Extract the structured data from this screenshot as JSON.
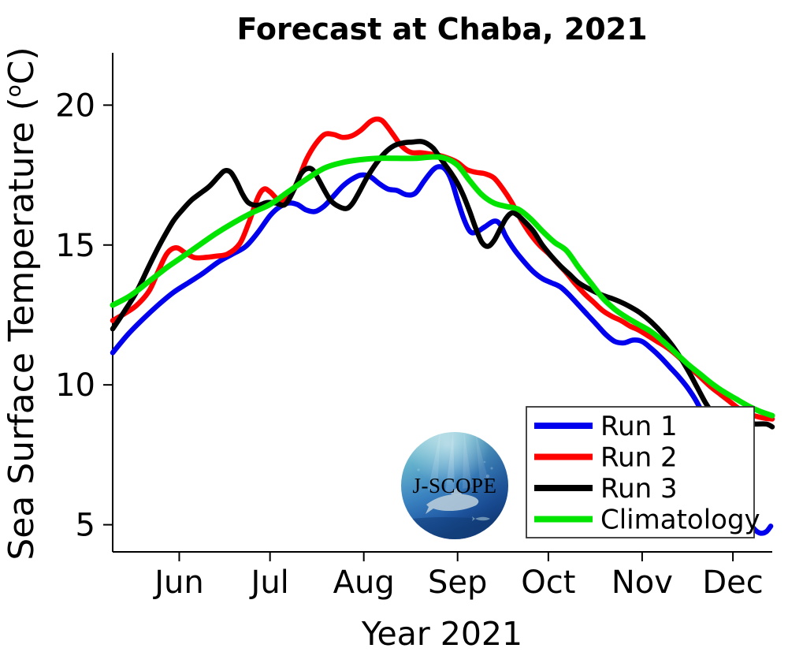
{
  "chart_data": {
    "type": "line",
    "title": "Forecast at Chaba, 2021",
    "xlabel": "Year 2021",
    "ylabel": "Sea Surface Temperature (°C)",
    "grid": false,
    "legend_position": "lower-right-inside",
    "x_domain_days": [
      0,
      218
    ],
    "x_ticks": [
      {
        "day": 22,
        "label": "Jun"
      },
      {
        "day": 52,
        "label": "Jul"
      },
      {
        "day": 83,
        "label": "Aug"
      },
      {
        "day": 114,
        "label": "Sep"
      },
      {
        "day": 144,
        "label": "Oct"
      },
      {
        "day": 175,
        "label": "Nov"
      },
      {
        "day": 205,
        "label": "Dec"
      }
    ],
    "ylim": [
      4.03,
      21.87
    ],
    "y_ticks": [
      5,
      10,
      15,
      20
    ],
    "series": [
      {
        "name": "Run 1",
        "color": "#0000ee",
        "width": 6.5,
        "points": [
          [
            0,
            11.15
          ],
          [
            5,
            11.8
          ],
          [
            10,
            12.35
          ],
          [
            15,
            12.85
          ],
          [
            20,
            13.3
          ],
          [
            25,
            13.65
          ],
          [
            30,
            14.0
          ],
          [
            35,
            14.4
          ],
          [
            40,
            14.7
          ],
          [
            44,
            14.95
          ],
          [
            48,
            15.45
          ],
          [
            52,
            16.05
          ],
          [
            55,
            16.35
          ],
          [
            58,
            16.5
          ],
          [
            61,
            16.45
          ],
          [
            64,
            16.25
          ],
          [
            67,
            16.2
          ],
          [
            70,
            16.4
          ],
          [
            73,
            16.75
          ],
          [
            76,
            17.1
          ],
          [
            79,
            17.35
          ],
          [
            82,
            17.5
          ],
          [
            85,
            17.45
          ],
          [
            88,
            17.2
          ],
          [
            91,
            17.0
          ],
          [
            94,
            16.95
          ],
          [
            97,
            16.8
          ],
          [
            100,
            16.85
          ],
          [
            103,
            17.3
          ],
          [
            106,
            17.7
          ],
          [
            108,
            17.8
          ],
          [
            110,
            17.7
          ],
          [
            112,
            17.3
          ],
          [
            114,
            16.6
          ],
          [
            116,
            15.95
          ],
          [
            118,
            15.5
          ],
          [
            120,
            15.45
          ],
          [
            123,
            15.65
          ],
          [
            126,
            15.85
          ],
          [
            128,
            15.75
          ],
          [
            130,
            15.3
          ],
          [
            133,
            14.8
          ],
          [
            136,
            14.4
          ],
          [
            139,
            14.05
          ],
          [
            142,
            13.8
          ],
          [
            145,
            13.65
          ],
          [
            148,
            13.5
          ],
          [
            151,
            13.2
          ],
          [
            154,
            12.85
          ],
          [
            157,
            12.5
          ],
          [
            160,
            12.15
          ],
          [
            163,
            11.8
          ],
          [
            166,
            11.55
          ],
          [
            169,
            11.5
          ],
          [
            172,
            11.6
          ],
          [
            175,
            11.55
          ],
          [
            178,
            11.3
          ],
          [
            181,
            11.0
          ],
          [
            184,
            10.65
          ],
          [
            187,
            10.3
          ],
          [
            190,
            9.9
          ],
          [
            193,
            9.4
          ],
          [
            196,
            8.75
          ],
          [
            199,
            8.0
          ],
          [
            202,
            7.2
          ],
          [
            205,
            6.4
          ],
          [
            208,
            5.6
          ],
          [
            210,
            5.15
          ],
          [
            212,
            4.85
          ],
          [
            214,
            4.7
          ],
          [
            216,
            4.75
          ],
          [
            217.5,
            4.95
          ]
        ]
      },
      {
        "name": "Run 2",
        "color": "#ff0000",
        "width": 6.5,
        "points": [
          [
            0,
            12.3
          ],
          [
            4,
            12.55
          ],
          [
            8,
            12.85
          ],
          [
            12,
            13.35
          ],
          [
            15,
            14.05
          ],
          [
            18,
            14.7
          ],
          [
            21,
            14.9
          ],
          [
            24,
            14.72
          ],
          [
            27,
            14.55
          ],
          [
            30,
            14.55
          ],
          [
            34,
            14.6
          ],
          [
            38,
            14.68
          ],
          [
            42,
            15.05
          ],
          [
            45,
            15.8
          ],
          [
            48,
            16.7
          ],
          [
            50,
            17.0
          ],
          [
            52,
            16.9
          ],
          [
            55,
            16.6
          ],
          [
            58,
            16.7
          ],
          [
            61,
            17.25
          ],
          [
            64,
            18.05
          ],
          [
            67,
            18.6
          ],
          [
            70,
            18.95
          ],
          [
            73,
            18.95
          ],
          [
            76,
            18.85
          ],
          [
            79,
            18.9
          ],
          [
            82,
            19.1
          ],
          [
            85,
            19.4
          ],
          [
            87,
            19.5
          ],
          [
            89,
            19.45
          ],
          [
            91,
            19.2
          ],
          [
            93,
            18.9
          ],
          [
            95,
            18.6
          ],
          [
            97,
            18.4
          ],
          [
            99,
            18.3
          ],
          [
            102,
            18.3
          ],
          [
            105,
            18.25
          ],
          [
            108,
            18.2
          ],
          [
            111,
            18.1
          ],
          [
            114,
            17.95
          ],
          [
            117,
            17.7
          ],
          [
            120,
            17.6
          ],
          [
            123,
            17.55
          ],
          [
            126,
            17.4
          ],
          [
            129,
            17.0
          ],
          [
            132,
            16.5
          ],
          [
            135,
            15.9
          ],
          [
            138,
            15.4
          ],
          [
            141,
            15.0
          ],
          [
            144,
            14.7
          ],
          [
            147,
            14.35
          ],
          [
            150,
            14.0
          ],
          [
            153,
            13.6
          ],
          [
            156,
            13.25
          ],
          [
            159,
            12.95
          ],
          [
            162,
            12.65
          ],
          [
            165,
            12.45
          ],
          [
            168,
            12.3
          ],
          [
            171,
            12.1
          ],
          [
            174,
            11.95
          ],
          [
            177,
            11.75
          ],
          [
            180,
            11.55
          ],
          [
            183,
            11.35
          ],
          [
            186,
            11.1
          ],
          [
            189,
            10.8
          ],
          [
            192,
            10.5
          ],
          [
            195,
            10.2
          ],
          [
            198,
            9.9
          ],
          [
            201,
            9.65
          ],
          [
            204,
            9.4
          ],
          [
            207,
            9.15
          ],
          [
            210,
            8.97
          ],
          [
            213,
            8.87
          ],
          [
            216,
            8.8
          ],
          [
            218,
            8.78
          ]
        ]
      },
      {
        "name": "Run 3",
        "color": "#000000",
        "width": 6.5,
        "points": [
          [
            0,
            12.0
          ],
          [
            4,
            12.65
          ],
          [
            8,
            13.35
          ],
          [
            12,
            14.25
          ],
          [
            16,
            15.1
          ],
          [
            20,
            15.85
          ],
          [
            23,
            16.25
          ],
          [
            26,
            16.6
          ],
          [
            29,
            16.85
          ],
          [
            32,
            17.1
          ],
          [
            35,
            17.45
          ],
          [
            37,
            17.65
          ],
          [
            39,
            17.6
          ],
          [
            41,
            17.25
          ],
          [
            43,
            16.8
          ],
          [
            45,
            16.5
          ],
          [
            48,
            16.42
          ],
          [
            51,
            16.52
          ],
          [
            54,
            16.5
          ],
          [
            57,
            16.45
          ],
          [
            60,
            17.0
          ],
          [
            62,
            17.5
          ],
          [
            64,
            17.72
          ],
          [
            66,
            17.7
          ],
          [
            68,
            17.35
          ],
          [
            70,
            16.95
          ],
          [
            72,
            16.6
          ],
          [
            74,
            16.42
          ],
          [
            77,
            16.3
          ],
          [
            79,
            16.45
          ],
          [
            81,
            16.8
          ],
          [
            84,
            17.4
          ],
          [
            87,
            17.9
          ],
          [
            90,
            18.3
          ],
          [
            93,
            18.55
          ],
          [
            96,
            18.65
          ],
          [
            99,
            18.68
          ],
          [
            102,
            18.7
          ],
          [
            104,
            18.62
          ],
          [
            106,
            18.45
          ],
          [
            108,
            18.15
          ],
          [
            110,
            17.85
          ],
          [
            112,
            17.55
          ],
          [
            114,
            17.2
          ],
          [
            116,
            16.75
          ],
          [
            118,
            16.2
          ],
          [
            120,
            15.6
          ],
          [
            122,
            15.1
          ],
          [
            124,
            14.95
          ],
          [
            126,
            15.15
          ],
          [
            128,
            15.55
          ],
          [
            130,
            15.95
          ],
          [
            132,
            16.15
          ],
          [
            134,
            16.05
          ],
          [
            136,
            15.85
          ],
          [
            139,
            15.5
          ],
          [
            142,
            15.0
          ],
          [
            145,
            14.6
          ],
          [
            148,
            14.25
          ],
          [
            151,
            13.95
          ],
          [
            154,
            13.65
          ],
          [
            158,
            13.4
          ],
          [
            162,
            13.2
          ],
          [
            166,
            13.05
          ],
          [
            170,
            12.85
          ],
          [
            174,
            12.6
          ],
          [
            178,
            12.25
          ],
          [
            182,
            11.8
          ],
          [
            186,
            11.25
          ],
          [
            190,
            10.55
          ],
          [
            193,
            9.95
          ],
          [
            196,
            9.35
          ],
          [
            198,
            9.05
          ],
          [
            201,
            8.82
          ],
          [
            204,
            8.7
          ],
          [
            208,
            8.62
          ],
          [
            212,
            8.6
          ],
          [
            216,
            8.6
          ],
          [
            218,
            8.5
          ]
        ]
      },
      {
        "name": "Climatology",
        "color": "#00e400",
        "width": 7,
        "points": [
          [
            0,
            12.85
          ],
          [
            6,
            13.2
          ],
          [
            12,
            13.7
          ],
          [
            18,
            14.2
          ],
          [
            22,
            14.5
          ],
          [
            28,
            14.95
          ],
          [
            34,
            15.4
          ],
          [
            40,
            15.8
          ],
          [
            46,
            16.15
          ],
          [
            52,
            16.45
          ],
          [
            58,
            16.9
          ],
          [
            64,
            17.35
          ],
          [
            70,
            17.75
          ],
          [
            76,
            17.95
          ],
          [
            82,
            18.05
          ],
          [
            88,
            18.1
          ],
          [
            94,
            18.1
          ],
          [
            100,
            18.1
          ],
          [
            106,
            18.15
          ],
          [
            110,
            18.1
          ],
          [
            114,
            17.85
          ],
          [
            118,
            17.3
          ],
          [
            122,
            16.8
          ],
          [
            126,
            16.5
          ],
          [
            130,
            16.38
          ],
          [
            134,
            16.28
          ],
          [
            138,
            15.95
          ],
          [
            142,
            15.5
          ],
          [
            146,
            15.1
          ],
          [
            150,
            14.8
          ],
          [
            154,
            14.2
          ],
          [
            158,
            13.65
          ],
          [
            162,
            13.1
          ],
          [
            166,
            12.7
          ],
          [
            170,
            12.4
          ],
          [
            174,
            12.15
          ],
          [
            178,
            11.9
          ],
          [
            182,
            11.55
          ],
          [
            186,
            11.15
          ],
          [
            190,
            10.75
          ],
          [
            194,
            10.4
          ],
          [
            198,
            10.05
          ],
          [
            202,
            9.75
          ],
          [
            206,
            9.5
          ],
          [
            210,
            9.25
          ],
          [
            214,
            9.05
          ],
          [
            218,
            8.9
          ]
        ]
      }
    ]
  },
  "legend": {
    "items": [
      {
        "label": "Run 1",
        "color": "#0000ee"
      },
      {
        "label": "Run 2",
        "color": "#ff0000"
      },
      {
        "label": "Run 3",
        "color": "#000000"
      },
      {
        "label": "Climatology",
        "color": "#00e400"
      }
    ]
  },
  "logo": {
    "text": "J-SCOPE"
  },
  "colors": {
    "axis": "#000000",
    "background": "#ffffff",
    "legend_border": "#333333"
  }
}
